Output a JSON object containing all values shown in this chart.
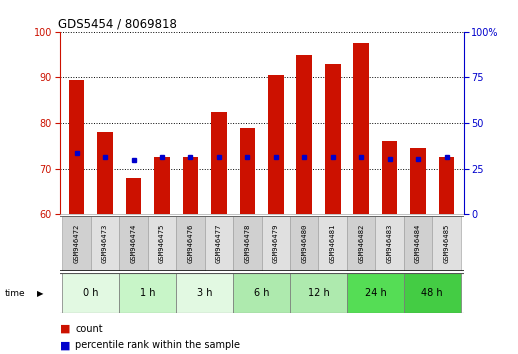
{
  "title": "GDS5454 / 8069818",
  "samples": [
    "GSM946472",
    "GSM946473",
    "GSM946474",
    "GSM946475",
    "GSM946476",
    "GSM946477",
    "GSM946478",
    "GSM946479",
    "GSM946480",
    "GSM946481",
    "GSM946482",
    "GSM946483",
    "GSM946484",
    "GSM946485"
  ],
  "count_values": [
    89.5,
    78.0,
    68.0,
    72.5,
    72.5,
    82.5,
    79.0,
    90.5,
    95.0,
    93.0,
    97.5,
    76.0,
    74.5,
    72.5
  ],
  "percentile_marker_y": [
    73.5,
    72.5,
    71.8,
    72.5,
    72.5,
    72.5,
    72.5,
    72.5,
    72.5,
    72.5,
    72.5,
    72.0,
    72.0,
    72.5
  ],
  "time_groups": [
    {
      "label": "0 h",
      "indices": [
        0,
        1
      ],
      "color": "#e2f9e2"
    },
    {
      "label": "1 h",
      "indices": [
        2,
        3
      ],
      "color": "#c8f5c8"
    },
    {
      "label": "3 h",
      "indices": [
        4,
        5
      ],
      "color": "#e2f9e2"
    },
    {
      "label": "6 h",
      "indices": [
        6,
        7
      ],
      "color": "#aeeaae"
    },
    {
      "label": "12 h",
      "indices": [
        8,
        9
      ],
      "color": "#aeeaae"
    },
    {
      "label": "24 h",
      "indices": [
        10,
        11
      ],
      "color": "#55dd55"
    },
    {
      "label": "48 h",
      "indices": [
        12,
        13
      ],
      "color": "#44cc44"
    }
  ],
  "ylim_left": [
    60,
    100
  ],
  "ylim_right": [
    0,
    100
  ],
  "bar_color": "#cc1100",
  "marker_color": "#0000cc",
  "bg_color": "#ffffff",
  "tick_color_left": "#cc1100",
  "tick_color_right": "#0000cc",
  "yticks_left": [
    60,
    70,
    80,
    90,
    100
  ],
  "yticks_right": [
    0,
    25,
    50,
    75,
    100
  ],
  "bar_width": 0.55,
  "bar_bottom": 60,
  "sample_cell_colors": [
    "#d0d0d0",
    "#e0e0e0",
    "#d0d0d0",
    "#e0e0e0",
    "#d0d0d0",
    "#e0e0e0",
    "#d0d0d0",
    "#e0e0e0",
    "#d0d0d0",
    "#e0e0e0",
    "#d0d0d0",
    "#e0e0e0",
    "#d0d0d0",
    "#e0e0e0"
  ]
}
